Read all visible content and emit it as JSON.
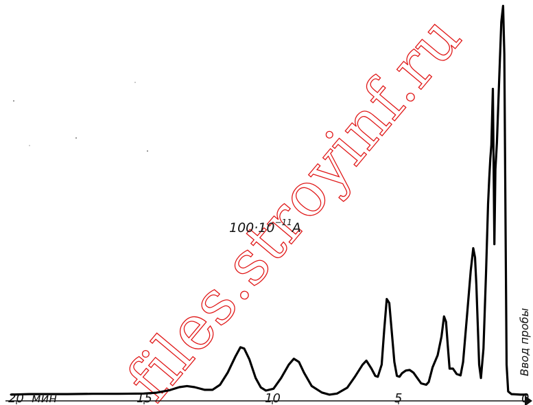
{
  "chart_data": {
    "type": "line",
    "x_axis": {
      "unit_label": "мин",
      "reversed": true,
      "range": [
        0,
        20
      ],
      "ticks": [
        {
          "value": 20,
          "label": "20"
        },
        {
          "value": 15,
          "label": "15"
        },
        {
          "value": 10,
          "label": "10"
        },
        {
          "value": 5,
          "label": "5"
        },
        {
          "value": 0,
          "label": "0"
        }
      ]
    },
    "annotation": {
      "prefix": "100·10",
      "exponent": "−11",
      "suffix": "A"
    },
    "injection_label": "Ввод пробы",
    "series": [
      {
        "points": [
          [
            20.2,
            0.8
          ],
          [
            19.5,
            1.0
          ],
          [
            18.0,
            1.0
          ],
          [
            17.0,
            1.1
          ],
          [
            16.0,
            1.1
          ],
          [
            15.0,
            1.2
          ],
          [
            14.5,
            1.5
          ],
          [
            14.0,
            2.4
          ],
          [
            13.6,
            3.6
          ],
          [
            13.3,
            4.0
          ],
          [
            13.0,
            3.6
          ],
          [
            12.6,
            2.6
          ],
          [
            12.3,
            2.6
          ],
          [
            12.0,
            4.5
          ],
          [
            11.7,
            9.0
          ],
          [
            11.4,
            15.0
          ],
          [
            11.2,
            18.5
          ],
          [
            11.05,
            18.0
          ],
          [
            10.85,
            14.0
          ],
          [
            10.6,
            7.0
          ],
          [
            10.4,
            3.5
          ],
          [
            10.2,
            2.3
          ],
          [
            9.9,
            3.0
          ],
          [
            9.6,
            7.0
          ],
          [
            9.3,
            12.0
          ],
          [
            9.1,
            14.2
          ],
          [
            8.9,
            13.0
          ],
          [
            8.7,
            9.0
          ],
          [
            8.4,
            4.0
          ],
          [
            8.0,
            1.6
          ],
          [
            7.7,
            0.8
          ],
          [
            7.4,
            1.2
          ],
          [
            7.0,
            3.4
          ],
          [
            6.7,
            7.5
          ],
          [
            6.4,
            12.0
          ],
          [
            6.25,
            13.5
          ],
          [
            6.05,
            10.5
          ],
          [
            5.9,
            7.8
          ],
          [
            5.8,
            7.5
          ],
          [
            5.65,
            12.0
          ],
          [
            5.55,
            25.0
          ],
          [
            5.45,
            36.5
          ],
          [
            5.35,
            35.0
          ],
          [
            5.25,
            24.0
          ],
          [
            5.15,
            13.0
          ],
          [
            5.05,
            7.8
          ],
          [
            4.95,
            7.5
          ],
          [
            4.85,
            8.8
          ],
          [
            4.7,
            9.8
          ],
          [
            4.55,
            10.0
          ],
          [
            4.4,
            9.0
          ],
          [
            4.25,
            7.0
          ],
          [
            4.1,
            5.0
          ],
          [
            3.9,
            4.5
          ],
          [
            3.8,
            5.5
          ],
          [
            3.65,
            11.0
          ],
          [
            3.45,
            15.5
          ],
          [
            3.3,
            22.5
          ],
          [
            3.2,
            30.0
          ],
          [
            3.12,
            28.0
          ],
          [
            3.05,
            19.0
          ],
          [
            2.98,
            10.5
          ],
          [
            2.85,
            10.5
          ],
          [
            2.7,
            8.5
          ],
          [
            2.55,
            8.0
          ],
          [
            2.45,
            13.0
          ],
          [
            2.3,
            30.0
          ],
          [
            2.15,
            47.0
          ],
          [
            2.05,
            55.5
          ],
          [
            1.98,
            52.0
          ],
          [
            1.93,
            42.0
          ],
          [
            1.87,
            26.0
          ],
          [
            1.82,
            12.0
          ],
          [
            1.75,
            7.0
          ],
          [
            1.65,
            18.0
          ],
          [
            1.55,
            46.0
          ],
          [
            1.47,
            72.0
          ],
          [
            1.42,
            82.0
          ],
          [
            1.38,
            89.0
          ],
          [
            1.34,
            94.0
          ],
          [
            1.28,
            115.0
          ],
          [
            1.22,
            57.0
          ],
          [
            1.18,
            85.0
          ],
          [
            1.12,
            95.0
          ],
          [
            1.02,
            122.0
          ],
          [
            0.95,
            140.0
          ],
          [
            0.88,
            146.0
          ],
          [
            0.83,
            128.0
          ],
          [
            0.78,
            60.0
          ],
          [
            0.74,
            12.0
          ],
          [
            0.68,
            2.0
          ],
          [
            0.55,
            1.0
          ],
          [
            0.2,
            0.8
          ],
          [
            -0.05,
            0.8
          ]
        ]
      }
    ]
  },
  "watermark": {
    "text": "files.stroyinf.ru"
  }
}
